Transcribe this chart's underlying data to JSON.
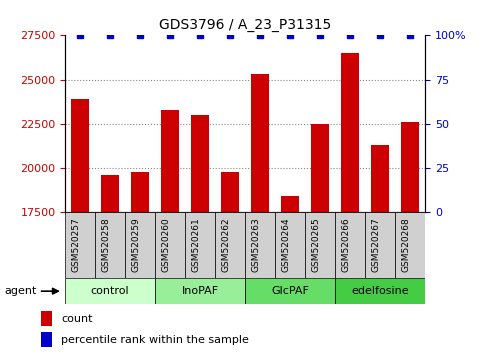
{
  "title": "GDS3796 / A_23_P31315",
  "categories": [
    "GSM520257",
    "GSM520258",
    "GSM520259",
    "GSM520260",
    "GSM520261",
    "GSM520262",
    "GSM520263",
    "GSM520264",
    "GSM520265",
    "GSM520266",
    "GSM520267",
    "GSM520268"
  ],
  "bar_values": [
    23900,
    19600,
    19800,
    23300,
    23000,
    19800,
    25300,
    18400,
    22500,
    26500,
    21300,
    22600
  ],
  "percentile_values": [
    100,
    100,
    100,
    100,
    100,
    100,
    100,
    100,
    100,
    100,
    100,
    100
  ],
  "bar_color": "#cc0000",
  "percentile_color": "#0000cc",
  "ylim_left": [
    17500,
    27500
  ],
  "ylim_right": [
    0,
    100
  ],
  "yticks_left": [
    17500,
    20000,
    22500,
    25000,
    27500
  ],
  "yticks_right": [
    0,
    25,
    50,
    75,
    100
  ],
  "ytick_labels_right": [
    "0",
    "25",
    "50",
    "75",
    "100%"
  ],
  "groups": [
    {
      "label": "control",
      "start": 0,
      "end": 3,
      "color": "#ccffcc"
    },
    {
      "label": "InoPAF",
      "start": 3,
      "end": 6,
      "color": "#99ee99"
    },
    {
      "label": "GlcPAF",
      "start": 6,
      "end": 9,
      "color": "#66dd66"
    },
    {
      "label": "edelfosine",
      "start": 9,
      "end": 12,
      "color": "#44cc44"
    }
  ],
  "agent_label": "agent",
  "legend_count_label": "count",
  "legend_percentile_label": "percentile rank within the sample",
  "grid_color": "#888888",
  "bar_width": 0.6,
  "tick_label_fontsize": 6.5,
  "title_fontsize": 10,
  "xtick_bg_color": "#d0d0d0",
  "group_border_color": "#000000"
}
